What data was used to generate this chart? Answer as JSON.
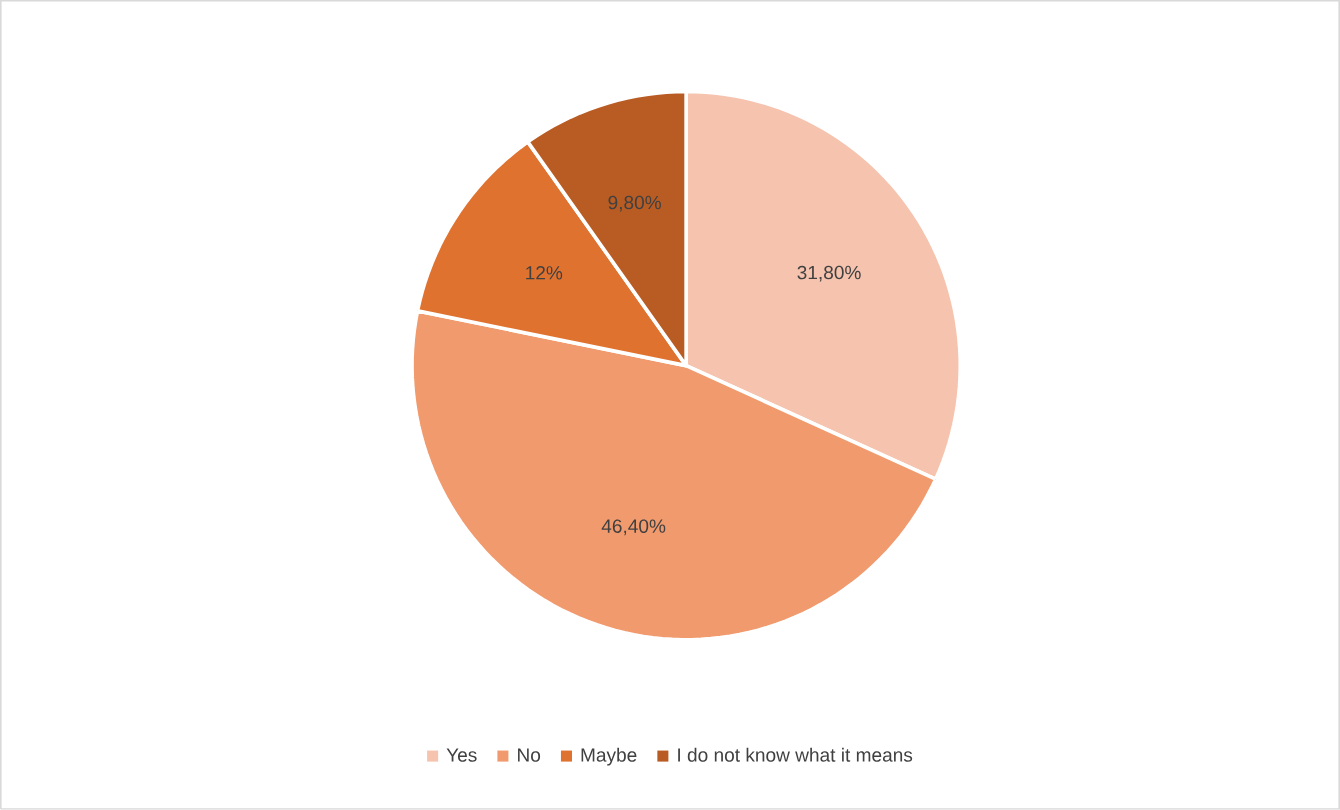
{
  "chart_data": {
    "type": "pie",
    "categories": [
      "Yes",
      "No",
      "Maybe",
      "I do not know what it means"
    ],
    "values": [
      31.8,
      46.4,
      12,
      9.8
    ],
    "value_labels": [
      "31,80%",
      "46,40%",
      "12%",
      "9,80%"
    ],
    "colors": [
      "#f5c3ae",
      "#f09a6d",
      "#e07230",
      "#b95c24"
    ],
    "legend": "bottom"
  }
}
